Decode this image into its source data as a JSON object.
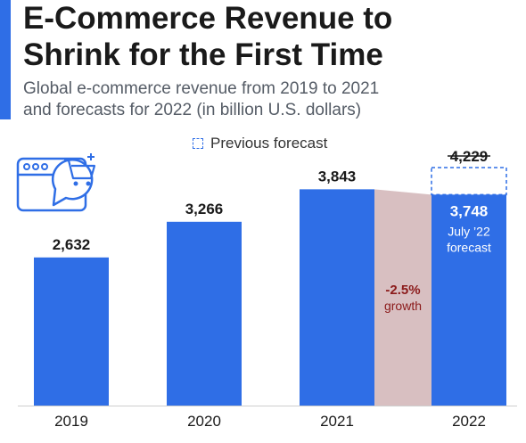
{
  "title_lines": [
    "E-Commerce Revenue to",
    "Shrink for the First Time"
  ],
  "subtitle_lines": [
    "Global e-commerce revenue from 2019 to 2021",
    "and forecasts for 2022 (in billion U.S. dollars)"
  ],
  "legend": {
    "label": "Previous forecast",
    "icon": "dashed-square-icon"
  },
  "icon": "browser-cart-icon",
  "colors": {
    "bar": "#2f6ee6",
    "accent": "#2f6ee6",
    "growth_band": "#d8bfc1",
    "growth_text": "#8b1a1a"
  },
  "chart_data": {
    "type": "bar",
    "title": "E-Commerce Revenue to Shrink for the First Time",
    "categories": [
      "2019",
      "2020",
      "2021",
      "2022"
    ],
    "values": [
      2632,
      3266,
      3843,
      3748
    ],
    "value_labels": [
      "2,632",
      "3,266",
      "3,843",
      "3,748"
    ],
    "previous_forecast": {
      "category": "2022",
      "value": 4229,
      "label": "4,229"
    },
    "forecast_note": [
      "July ’22",
      "forecast"
    ],
    "growth_annotation": {
      "value": "-2.5%",
      "label": "growth"
    },
    "ylim": [
      0,
      4229
    ],
    "xlabel": "",
    "ylabel": "",
    "grid": false,
    "legend_position": "top-center"
  }
}
